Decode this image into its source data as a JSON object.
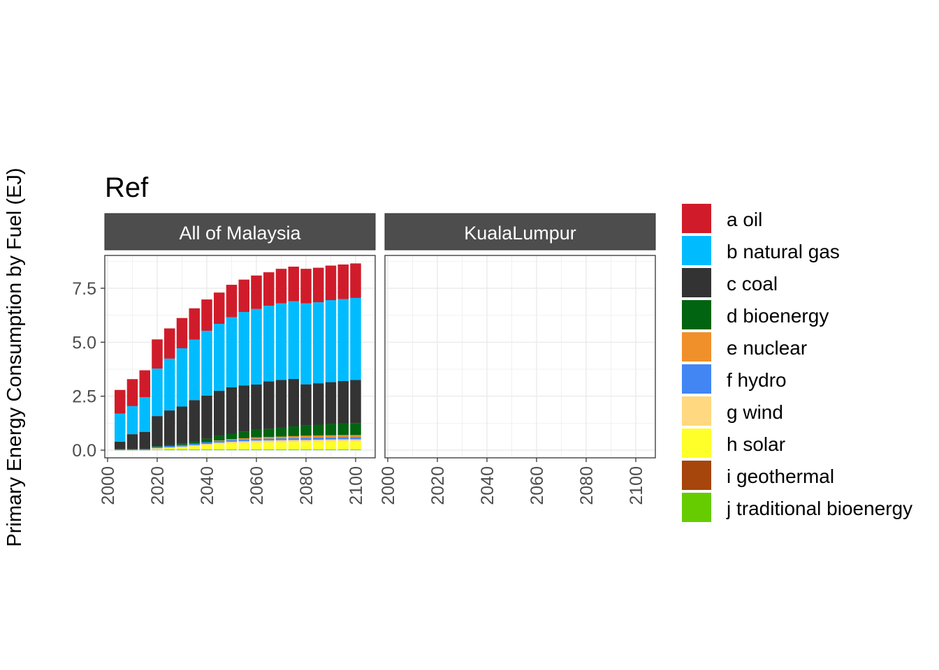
{
  "chart_data": {
    "type": "bar",
    "stacked": true,
    "title": "Ref",
    "ylabel": "Primary Energy Consumption by Fuel (EJ)",
    "xlabel": "",
    "ylim": [
      0,
      8.7
    ],
    "xlim": [
      2000,
      2100
    ],
    "y_ticks": [
      0,
      2.5,
      5,
      7.5
    ],
    "y_tick_labels": [
      "0.0",
      "2.5",
      "5.0",
      "7.5"
    ],
    "x_ticks": [
      2000,
      2020,
      2040,
      2060,
      2080,
      2100
    ],
    "x_tick_labels": [
      "2000",
      "2020",
      "2040",
      "2060",
      "2080",
      "2100"
    ],
    "grid": true,
    "legend_position": "right",
    "facets": [
      {
        "label": "All of Malaysia",
        "x": [
          2005,
          2010,
          2015,
          2020,
          2025,
          2030,
          2035,
          2040,
          2045,
          2050,
          2055,
          2060,
          2065,
          2070,
          2075,
          2080,
          2085,
          2090,
          2095,
          2100
        ],
        "series": [
          {
            "name": "j traditional bioenergy",
            "color": "#66CC00",
            "values": [
              0.01,
              0.01,
              0.01,
              0.02,
              0.03,
              0.03,
              0.03,
              0.03,
              0.03,
              0.03,
              0.03,
              0.03,
              0.03,
              0.03,
              0.03,
              0.03,
              0.03,
              0.03,
              0.03,
              0.03
            ]
          },
          {
            "name": "i geothermal",
            "color": "#A6450C",
            "values": [
              0,
              0,
              0,
              0,
              0,
              0,
              0,
              0,
              0,
              0,
              0,
              0,
              0,
              0,
              0,
              0,
              0,
              0,
              0,
              0
            ]
          },
          {
            "name": "h solar",
            "color": "#FFFF29",
            "values": [
              0,
              0,
              0,
              0.05,
              0.07,
              0.1,
              0.15,
              0.2,
              0.25,
              0.28,
              0.3,
              0.32,
              0.33,
              0.34,
              0.35,
              0.35,
              0.36,
              0.37,
              0.38,
              0.38
            ]
          },
          {
            "name": "g wind",
            "color": "#FFD87F",
            "values": [
              0,
              0,
              0,
              0.02,
              0.03,
              0.04,
              0.05,
              0.06,
              0.07,
              0.08,
              0.08,
              0.09,
              0.09,
              0.09,
              0.09,
              0.09,
              0.09,
              0.09,
              0.09,
              0.09
            ]
          },
          {
            "name": "f hydro",
            "color": "#4286F4",
            "values": [
              0.03,
              0.03,
              0.04,
              0.06,
              0.06,
              0.07,
              0.07,
              0.08,
              0.08,
              0.08,
              0.09,
              0.09,
              0.09,
              0.09,
              0.09,
              0.1,
              0.1,
              0.1,
              0.1,
              0.1
            ]
          },
          {
            "name": "e nuclear",
            "color": "#F0902B",
            "values": [
              0,
              0,
              0,
              0,
              0,
              0,
              0,
              0,
              0.02,
              0.04,
              0.05,
              0.06,
              0.07,
              0.08,
              0.09,
              0.1,
              0.1,
              0.1,
              0.1,
              0.1
            ]
          },
          {
            "name": "d bioenergy",
            "color": "#006410",
            "values": [
              0,
              0,
              0,
              0.03,
              0.05,
              0.08,
              0.12,
              0.16,
              0.2,
              0.25,
              0.3,
              0.35,
              0.38,
              0.42,
              0.45,
              0.48,
              0.5,
              0.52,
              0.53,
              0.55
            ]
          },
          {
            "name": "c coal",
            "color": "#333333",
            "values": [
              0.35,
              0.7,
              0.8,
              1.4,
              1.6,
              1.7,
              1.9,
              2.0,
              2.1,
              2.15,
              2.15,
              2.1,
              2.2,
              2.2,
              2.2,
              1.9,
              1.92,
              1.94,
              1.97,
              2.0
            ]
          },
          {
            "name": "b natural gas",
            "color": "#00BCFF",
            "values": [
              1.3,
              1.3,
              1.6,
              2.2,
              2.4,
              2.7,
              2.8,
              3.0,
              3.1,
              3.25,
              3.4,
              3.5,
              3.5,
              3.55,
              3.6,
              3.75,
              3.75,
              3.8,
              3.8,
              3.8
            ]
          },
          {
            "name": "a oil",
            "color": "#D01C2A",
            "values": [
              1.1,
              1.25,
              1.25,
              1.35,
              1.4,
              1.4,
              1.45,
              1.45,
              1.45,
              1.5,
              1.5,
              1.55,
              1.55,
              1.6,
              1.6,
              1.6,
              1.6,
              1.6,
              1.6,
              1.6
            ]
          }
        ]
      },
      {
        "label": "KualaLumpur",
        "x": [],
        "series": []
      }
    ],
    "legend_labels": [
      "a oil",
      "b natural gas",
      "c coal",
      "d bioenergy",
      "e nuclear",
      "f hydro",
      "g wind",
      "h solar",
      "i geothermal",
      "j traditional bioenergy"
    ],
    "legend_colors": [
      "#D01C2A",
      "#00BCFF",
      "#333333",
      "#006410",
      "#F0902B",
      "#4286F4",
      "#FFD87F",
      "#FFFF29",
      "#A6450C",
      "#66CC00"
    ]
  }
}
